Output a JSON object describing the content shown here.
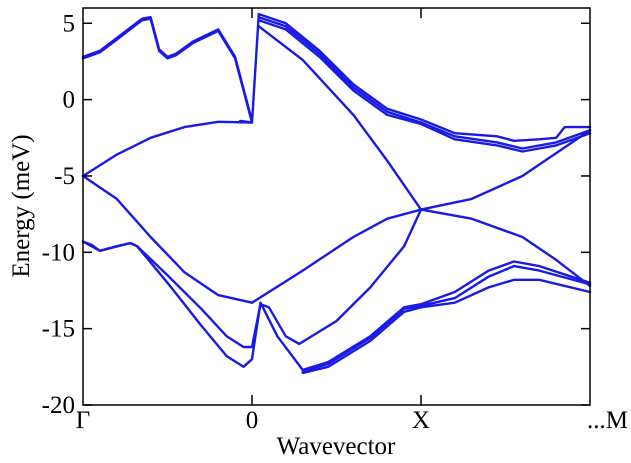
{
  "chart_data": {
    "type": "line",
    "xlabel": "Wavevector",
    "ylabel": "Energy (meV)",
    "ylim": [
      -20,
      6
    ],
    "xlim": [
      0,
      3
    ],
    "y_ticks": [
      5,
      0,
      -5,
      -10,
      -15,
      -20
    ],
    "x_ticks": [
      {
        "x": 0,
        "label": "Γ"
      },
      {
        "x": 1,
        "label": "0"
      },
      {
        "x": 2,
        "label": "X"
      },
      {
        "x": 3,
        "label": "...M"
      }
    ],
    "line_color": "#1a1ae6",
    "grid": false,
    "series": [
      {
        "values": [
          [
            0,
            2.8
          ],
          [
            0.1,
            3.2
          ],
          [
            0.22,
            4.2
          ],
          [
            0.35,
            5.3
          ],
          [
            0.4,
            5.4
          ],
          [
            0.45,
            3.3
          ],
          [
            0.5,
            2.8
          ],
          [
            0.55,
            3.0
          ],
          [
            0.65,
            3.8
          ],
          [
            0.8,
            4.6
          ],
          [
            0.9,
            2.8
          ],
          [
            1.0,
            -1.4
          ]
        ]
      },
      {
        "values": [
          [
            0,
            2.7
          ],
          [
            0.1,
            3.1
          ],
          [
            0.22,
            4.1
          ],
          [
            0.35,
            5.2
          ],
          [
            0.4,
            5.3
          ],
          [
            0.45,
            3.2
          ],
          [
            0.5,
            2.7
          ],
          [
            0.55,
            2.9
          ],
          [
            0.65,
            3.7
          ],
          [
            0.8,
            4.5
          ],
          [
            0.9,
            2.7
          ],
          [
            1.0,
            -1.5
          ]
        ]
      },
      {
        "values": [
          [
            0.93,
            -1.4
          ],
          [
            1.0,
            -1.5
          ],
          [
            1.04,
            5.6
          ],
          [
            1.2,
            5.0
          ],
          [
            1.4,
            3.2
          ],
          [
            1.6,
            1.0
          ],
          [
            1.8,
            -0.6
          ],
          [
            2.0,
            -1.3
          ],
          [
            2.2,
            -2.2
          ],
          [
            2.45,
            -2.4
          ],
          [
            2.55,
            -2.7
          ],
          [
            2.7,
            -2.6
          ],
          [
            2.8,
            -2.5
          ],
          [
            2.85,
            -1.8
          ],
          [
            3.0,
            -1.8
          ]
        ]
      },
      {
        "values": [
          [
            1.04,
            5.4
          ],
          [
            1.2,
            4.8
          ],
          [
            1.4,
            3.0
          ],
          [
            1.6,
            0.8
          ],
          [
            1.8,
            -0.8
          ],
          [
            2.0,
            -1.5
          ],
          [
            2.2,
            -2.4
          ],
          [
            2.45,
            -2.8
          ],
          [
            2.6,
            -3.2
          ],
          [
            2.8,
            -2.8
          ],
          [
            3.0,
            -2.0
          ]
        ]
      },
      {
        "values": [
          [
            1.04,
            5.2
          ],
          [
            1.2,
            4.6
          ],
          [
            1.4,
            2.8
          ],
          [
            1.6,
            0.6
          ],
          [
            1.8,
            -1.0
          ],
          [
            2.0,
            -1.6
          ],
          [
            2.2,
            -2.6
          ],
          [
            2.45,
            -3.0
          ],
          [
            2.6,
            -3.4
          ],
          [
            2.8,
            -3.0
          ],
          [
            3.0,
            -2.2
          ]
        ]
      },
      {
        "values": [
          [
            1.04,
            4.8
          ],
          [
            1.3,
            2.6
          ],
          [
            1.6,
            -1.0
          ],
          [
            1.8,
            -4.0
          ],
          [
            2.0,
            -7.2
          ]
        ]
      },
      {
        "values": [
          [
            0,
            -5.0
          ],
          [
            0.2,
            -3.6
          ],
          [
            0.4,
            -2.5
          ],
          [
            0.6,
            -1.8
          ],
          [
            0.8,
            -1.45
          ],
          [
            1.0,
            -1.5
          ]
        ]
      },
      {
        "values": [
          [
            0,
            -5.0
          ],
          [
            0.2,
            -6.5
          ],
          [
            0.4,
            -9.0
          ],
          [
            0.6,
            -11.3
          ],
          [
            0.8,
            -12.8
          ],
          [
            1.0,
            -13.3
          ]
        ]
      },
      {
        "values": [
          [
            1.0,
            -13.3
          ],
          [
            1.3,
            -11.2
          ],
          [
            1.6,
            -9.0
          ],
          [
            1.8,
            -7.8
          ],
          [
            2.0,
            -7.2
          ]
        ]
      },
      {
        "values": [
          [
            2.0,
            -7.2
          ],
          [
            2.3,
            -6.5
          ],
          [
            2.6,
            -5.0
          ],
          [
            2.8,
            -3.5
          ],
          [
            3.0,
            -2.0
          ]
        ]
      },
      {
        "values": [
          [
            2.0,
            -7.2
          ],
          [
            2.3,
            -7.8
          ],
          [
            2.6,
            -9.0
          ],
          [
            2.8,
            -10.5
          ],
          [
            3.0,
            -12.2
          ]
        ]
      },
      {
        "values": [
          [
            1.28,
            -16.0
          ],
          [
            1.5,
            -14.5
          ],
          [
            1.7,
            -12.3
          ],
          [
            1.9,
            -9.6
          ],
          [
            2.0,
            -7.2
          ]
        ]
      },
      {
        "values": [
          [
            0,
            -9.3
          ],
          [
            0.05,
            -9.5
          ],
          [
            0.1,
            -9.9
          ],
          [
            0.2,
            -9.6
          ],
          [
            0.28,
            -9.4
          ],
          [
            0.32,
            -9.6
          ],
          [
            0.5,
            -11.5
          ],
          [
            0.7,
            -13.7
          ],
          [
            0.85,
            -15.5
          ],
          [
            0.95,
            -16.2
          ],
          [
            1.0,
            -16.2
          ],
          [
            1.05,
            -13.4
          ],
          [
            1.1,
            -13.6
          ],
          [
            1.2,
            -15.5
          ],
          [
            1.28,
            -16.0
          ]
        ]
      },
      {
        "values": [
          [
            0,
            -9.3
          ],
          [
            0.1,
            -9.9
          ],
          [
            0.28,
            -9.4
          ],
          [
            0.32,
            -9.6
          ],
          [
            0.5,
            -12.0
          ],
          [
            0.7,
            -14.8
          ],
          [
            0.85,
            -16.8
          ],
          [
            0.95,
            -17.5
          ],
          [
            1.0,
            -17.0
          ],
          [
            1.05,
            -13.3
          ],
          [
            1.15,
            -15.5
          ],
          [
            1.3,
            -17.7
          ],
          [
            1.45,
            -17.2
          ],
          [
            1.7,
            -15.5
          ],
          [
            1.9,
            -13.6
          ],
          [
            2.0,
            -13.4
          ],
          [
            2.2,
            -12.6
          ],
          [
            2.4,
            -11.2
          ],
          [
            2.55,
            -10.6
          ],
          [
            2.7,
            -10.9
          ],
          [
            3.0,
            -12.0
          ]
        ]
      },
      {
        "values": [
          [
            1.3,
            -17.8
          ],
          [
            1.45,
            -17.3
          ],
          [
            1.7,
            -15.6
          ],
          [
            1.9,
            -13.7
          ],
          [
            2.0,
            -13.5
          ],
          [
            2.2,
            -13.0
          ],
          [
            2.4,
            -11.6
          ],
          [
            2.55,
            -10.9
          ],
          [
            2.7,
            -11.2
          ],
          [
            3.0,
            -12.1
          ]
        ]
      },
      {
        "values": [
          [
            1.3,
            -17.9
          ],
          [
            1.45,
            -17.5
          ],
          [
            1.7,
            -15.8
          ],
          [
            1.9,
            -13.9
          ],
          [
            2.0,
            -13.6
          ],
          [
            2.2,
            -13.3
          ],
          [
            2.4,
            -12.3
          ],
          [
            2.55,
            -11.8
          ],
          [
            2.7,
            -11.8
          ],
          [
            3.0,
            -12.6
          ]
        ]
      }
    ]
  }
}
